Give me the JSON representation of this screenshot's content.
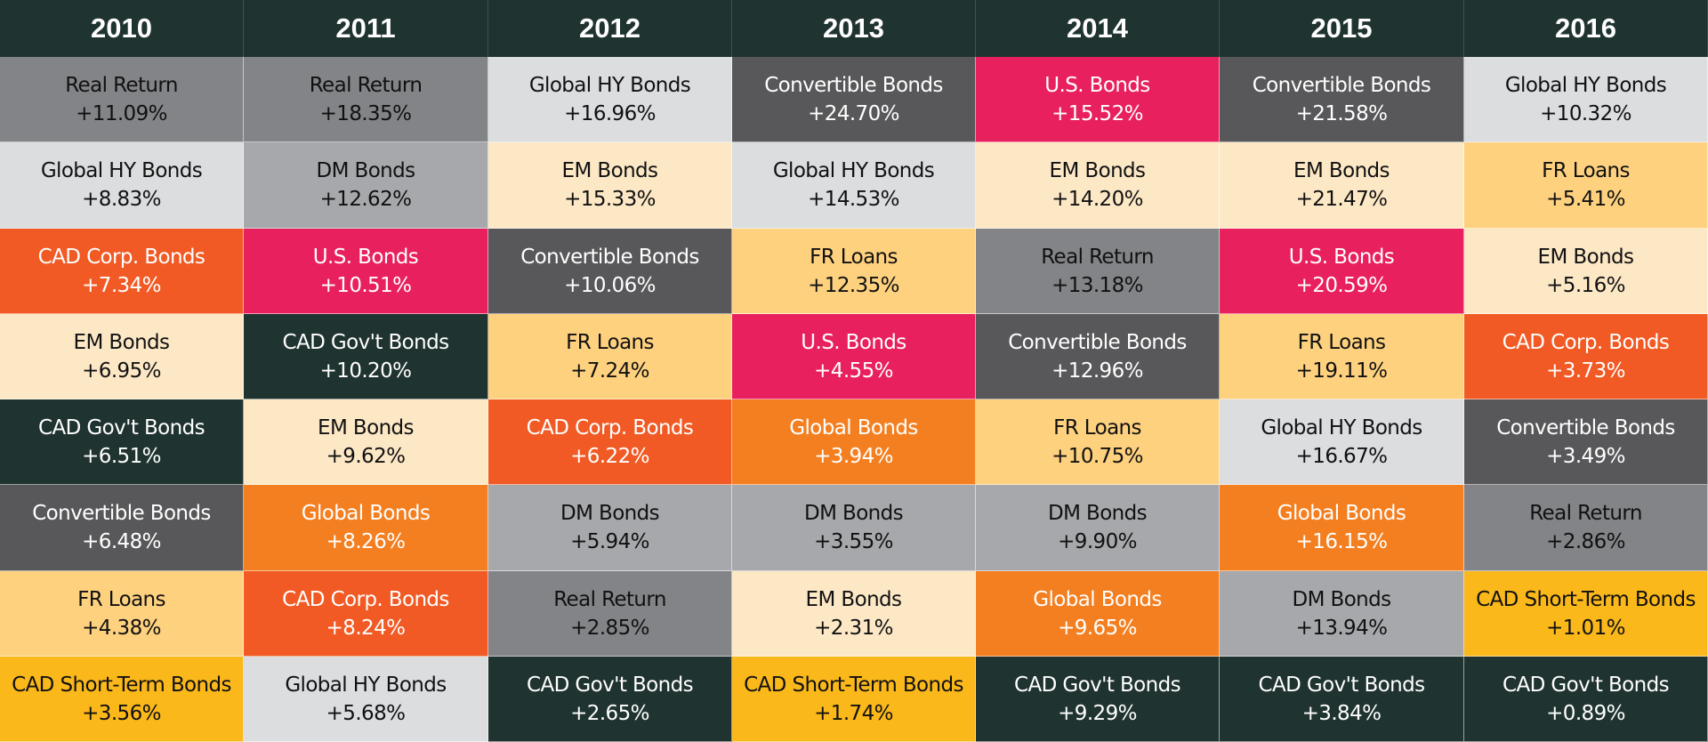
{
  "chart_data": {
    "type": "table",
    "title": "",
    "years": [
      "2010",
      "2011",
      "2012",
      "2013",
      "2014",
      "2015",
      "2016"
    ],
    "asset_classes": {
      "Real Return": {
        "color": "#838487",
        "text_color": "#111111"
      },
      "Global HY Bonds": {
        "color": "#dcdddf",
        "text_color": "#111111"
      },
      "CAD Corp. Bonds": {
        "color": "#f15a24",
        "text_color": "#ffffff"
      },
      "EM Bonds": {
        "color": "#fde8c6",
        "text_color": "#111111"
      },
      "CAD Gov't Bonds": {
        "color": "#1f3330",
        "text_color": "#ffffff"
      },
      "Convertible Bonds": {
        "color": "#58585a",
        "text_color": "#ffffff"
      },
      "FR Loans": {
        "color": "#fed17f",
        "text_color": "#111111"
      },
      "CAD Short-Term Bonds": {
        "color": "#fbb81b",
        "text_color": "#111111"
      },
      "DM Bonds": {
        "color": "#a7a8ab",
        "text_color": "#111111"
      },
      "U.S. Bonds": {
        "color": "#e8205e",
        "text_color": "#ffffff"
      },
      "Global Bonds": {
        "color": "#f47f20",
        "text_color": "#ffffff"
      }
    },
    "columns": [
      {
        "year": "2010",
        "cells": [
          {
            "name": "Real Return",
            "value": 11.09,
            "label": "+11.09%"
          },
          {
            "name": "Global HY Bonds",
            "value": 8.83,
            "label": "+8.83%"
          },
          {
            "name": "CAD Corp. Bonds",
            "value": 7.34,
            "label": "+7.34%"
          },
          {
            "name": "EM Bonds",
            "value": 6.95,
            "label": "+6.95%"
          },
          {
            "name": "CAD Gov't Bonds",
            "value": 6.51,
            "label": "+6.51%"
          },
          {
            "name": "Convertible Bonds",
            "value": 6.48,
            "label": "+6.48%"
          },
          {
            "name": "FR Loans",
            "value": 4.38,
            "label": "+4.38%"
          },
          {
            "name": "CAD Short-Term Bonds",
            "value": 3.56,
            "label": "+3.56%"
          }
        ]
      },
      {
        "year": "2011",
        "cells": [
          {
            "name": "Real Return",
            "value": 18.35,
            "label": "+18.35%"
          },
          {
            "name": "DM Bonds",
            "value": 12.62,
            "label": "+12.62%"
          },
          {
            "name": "U.S. Bonds",
            "value": 10.51,
            "label": "+10.51%"
          },
          {
            "name": "CAD Gov't Bonds",
            "value": 10.2,
            "label": "+10.20%"
          },
          {
            "name": "EM Bonds",
            "value": 9.62,
            "label": "+9.62%"
          },
          {
            "name": "Global Bonds",
            "value": 8.26,
            "label": "+8.26%"
          },
          {
            "name": "CAD Corp. Bonds",
            "value": 8.24,
            "label": "+8.24%"
          },
          {
            "name": "Global HY Bonds",
            "value": 5.68,
            "label": "+5.68%"
          }
        ]
      },
      {
        "year": "2012",
        "cells": [
          {
            "name": "Global HY Bonds",
            "value": 16.96,
            "label": "+16.96%"
          },
          {
            "name": "EM Bonds",
            "value": 15.33,
            "label": "+15.33%"
          },
          {
            "name": "Convertible Bonds",
            "value": 10.06,
            "label": "+10.06%"
          },
          {
            "name": "FR Loans",
            "value": 7.24,
            "label": "+7.24%"
          },
          {
            "name": "CAD Corp. Bonds",
            "value": 6.22,
            "label": "+6.22%"
          },
          {
            "name": "DM Bonds",
            "value": 5.94,
            "label": "+5.94%"
          },
          {
            "name": "Real Return",
            "value": 2.85,
            "label": "+2.85%"
          },
          {
            "name": "CAD Gov't Bonds",
            "value": 2.65,
            "label": "+2.65%"
          }
        ]
      },
      {
        "year": "2013",
        "cells": [
          {
            "name": "Convertible Bonds",
            "value": 24.7,
            "label": "+24.70%"
          },
          {
            "name": "Global HY Bonds",
            "value": 14.53,
            "label": "+14.53%"
          },
          {
            "name": "FR Loans",
            "value": 12.35,
            "label": "+12.35%"
          },
          {
            "name": "U.S. Bonds",
            "value": 4.55,
            "label": "+4.55%"
          },
          {
            "name": "Global Bonds",
            "value": 3.94,
            "label": "+3.94%"
          },
          {
            "name": "DM Bonds",
            "value": 3.55,
            "label": "+3.55%"
          },
          {
            "name": "EM Bonds",
            "value": 2.31,
            "label": "+2.31%"
          },
          {
            "name": "CAD Short-Term Bonds",
            "value": 1.74,
            "label": "+1.74%"
          }
        ]
      },
      {
        "year": "2014",
        "cells": [
          {
            "name": "U.S. Bonds",
            "value": 15.52,
            "label": "+15.52%"
          },
          {
            "name": "EM Bonds",
            "value": 14.2,
            "label": "+14.20%"
          },
          {
            "name": "Real Return",
            "value": 13.18,
            "label": "+13.18%"
          },
          {
            "name": "Convertible Bonds",
            "value": 12.96,
            "label": "+12.96%"
          },
          {
            "name": "FR Loans",
            "value": 10.75,
            "label": "+10.75%"
          },
          {
            "name": "DM Bonds",
            "value": 9.9,
            "label": "+9.90%"
          },
          {
            "name": "Global Bonds",
            "value": 9.65,
            "label": "+9.65%"
          },
          {
            "name": "CAD Gov't Bonds",
            "value": 9.29,
            "label": "+9.29%"
          }
        ]
      },
      {
        "year": "2015",
        "cells": [
          {
            "name": "Convertible Bonds",
            "value": 21.58,
            "label": "+21.58%"
          },
          {
            "name": "EM Bonds",
            "value": 21.47,
            "label": "+21.47%"
          },
          {
            "name": "U.S. Bonds",
            "value": 20.59,
            "label": "+20.59%"
          },
          {
            "name": "FR Loans",
            "value": 19.11,
            "label": "+19.11%"
          },
          {
            "name": "Global HY Bonds",
            "value": 16.67,
            "label": "+16.67%"
          },
          {
            "name": "Global Bonds",
            "value": 16.15,
            "label": "+16.15%"
          },
          {
            "name": "DM Bonds",
            "value": 13.94,
            "label": "+13.94%"
          },
          {
            "name": "CAD Gov't Bonds",
            "value": 3.84,
            "label": "+3.84%"
          }
        ]
      },
      {
        "year": "2016",
        "cells": [
          {
            "name": "Global HY Bonds",
            "value": 10.32,
            "label": "+10.32%"
          },
          {
            "name": "FR Loans",
            "value": 5.41,
            "label": "+5.41%"
          },
          {
            "name": "EM Bonds",
            "value": 5.16,
            "label": "+5.16%"
          },
          {
            "name": "CAD Corp. Bonds",
            "value": 3.73,
            "label": "+3.73%"
          },
          {
            "name": "Convertible Bonds",
            "value": 3.49,
            "label": "+3.49%"
          },
          {
            "name": "Real Return",
            "value": 2.86,
            "label": "+2.86%"
          },
          {
            "name": "CAD Short-Term Bonds",
            "value": 1.01,
            "label": "+1.01%"
          },
          {
            "name": "CAD Gov't Bonds",
            "value": 0.89,
            "label": "+0.89%"
          }
        ]
      }
    ]
  }
}
